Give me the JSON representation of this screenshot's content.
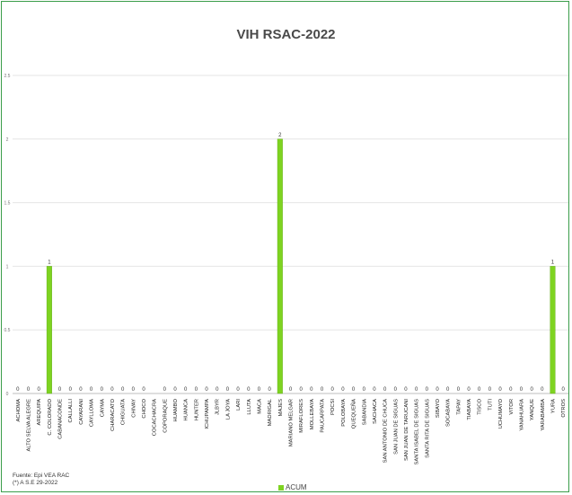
{
  "chart_data": {
    "type": "bar",
    "title": "VIH RSAC-2022",
    "xlabel": "",
    "ylabel": "",
    "ylim": [
      0,
      2.5
    ],
    "yticks": [
      "0",
      "0.5",
      "1",
      "1.5",
      "2",
      "2.5"
    ],
    "grid": true,
    "legend": "bottom-center",
    "color": "#7ed321",
    "categories": [
      "ACHOMA",
      "ALTO SELVA ALEGRE",
      "AREQUIPA",
      "C. COLORADO",
      "CABANACONDE",
      "CALLALLI",
      "CAYARANI",
      "CAYLLOMA",
      "CAYMA",
      "CHARACATO",
      "CHIGUATA",
      "CHIVAY",
      "CHOCO",
      "COCACHACRA",
      "COPORAQUE",
      "HUAMBO",
      "HUANCA",
      "HUNTER",
      "ICHUPAMPA",
      "JLBYR",
      "LA JOYA",
      "LARI",
      "LLUTA",
      "MACA",
      "MADRIGAL",
      "MAJES",
      "MARIANO MELGAR",
      "MIRAFLORES",
      "MOLLEBAYA",
      "PAUCARPATA",
      "POCSI",
      "POLOBAYA",
      "QUEQUEÑA",
      "SABANDIA",
      "SACHACA",
      "SAN ANTONIO DE CHUCA",
      "SAN JUAN DE SIGUAS",
      "SAN JUAN DE TARUCANI",
      "SANTA ISABEL DE SIGUAS",
      "SANTA RITA DE SIGUAS",
      "SIBAYO",
      "SOCABAYA",
      "TAPAY",
      "TIABAYA",
      "TISCO",
      "TUTI",
      "UCHUMAYO",
      "VITOR",
      "YANAHUARA",
      "YANQUE",
      "YARABAMBA",
      "YURA",
      "OTROS"
    ],
    "series": [
      {
        "name": "ACUM",
        "values": [
          0,
          0,
          0,
          1,
          0,
          0,
          0,
          0,
          0,
          0,
          0,
          0,
          0,
          null,
          0,
          0,
          0,
          0,
          0,
          0,
          0,
          0,
          0,
          0,
          0,
          2,
          0,
          0,
          0,
          0,
          0,
          0,
          0,
          0,
          0,
          0,
          0,
          0,
          0,
          0,
          0,
          0,
          0,
          0,
          0,
          0,
          0,
          0,
          0,
          0,
          0,
          1,
          0
        ]
      }
    ]
  },
  "source_note": [
    "Fuente: Epi VEA RAC",
    "(*) A S.E 29-2022"
  ]
}
